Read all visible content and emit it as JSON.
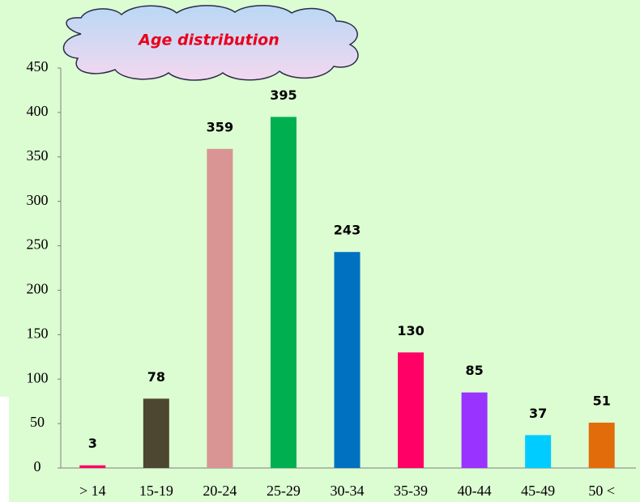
{
  "chart_data": {
    "type": "bar",
    "title": "Age distribution",
    "categories": [
      "> 14",
      "15-19",
      "20-24",
      "25-29",
      "30-34",
      "35-39",
      "40-44",
      "45-49",
      "50 <"
    ],
    "values": [
      3,
      78,
      359,
      395,
      243,
      130,
      85,
      37,
      51
    ],
    "colors": [
      "#ff0066",
      "#4d4630",
      "#d99594",
      "#00b050",
      "#0070c0",
      "#ff0066",
      "#9933ff",
      "#00ccff",
      "#e36c0a"
    ],
    "ylim": [
      0,
      450
    ],
    "yticks": [
      0,
      50,
      100,
      150,
      200,
      250,
      300,
      350,
      400,
      450
    ],
    "grid": false
  }
}
